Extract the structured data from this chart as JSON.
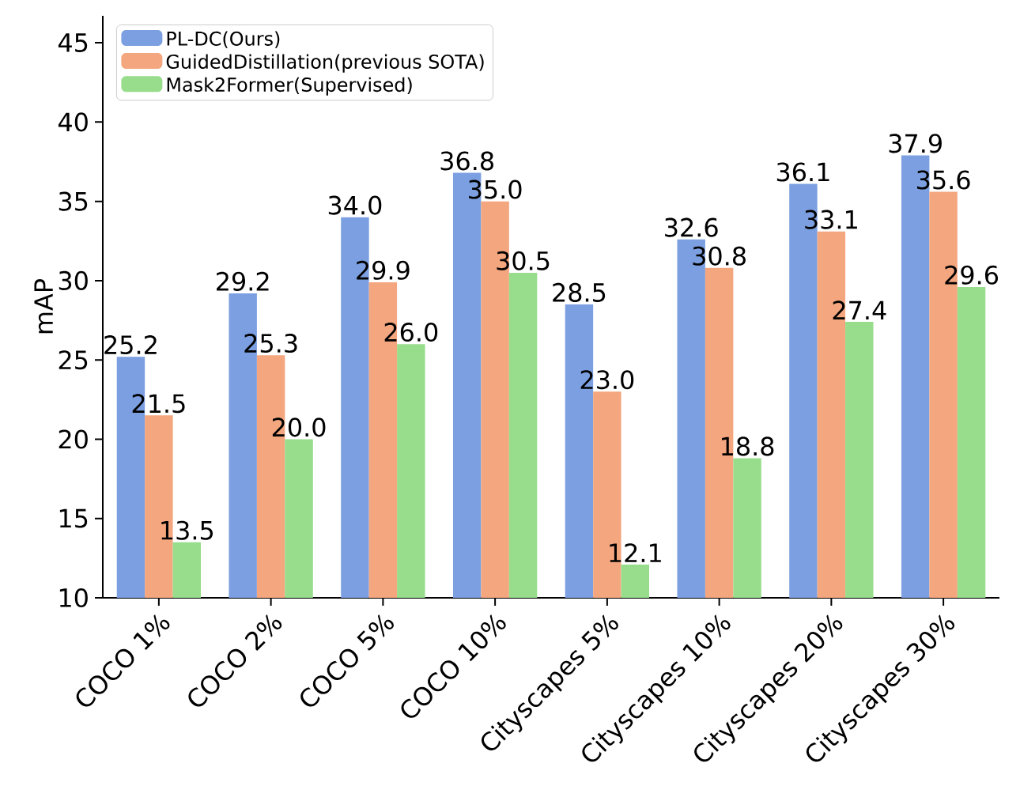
{
  "chart_data": {
    "type": "bar",
    "ylabel": "mAP",
    "categories": [
      "COCO 1%",
      "COCO 2%",
      "COCO 5%",
      "COCO 10%",
      "Cityscapes 5%",
      "Cityscapes 10%",
      "Cityscapes 20%",
      "Cityscapes 30%"
    ],
    "series": [
      {
        "name": "PL-DC(Ours)",
        "color": "#7b9fe0",
        "values": [
          25.2,
          29.2,
          34.0,
          36.8,
          28.5,
          32.6,
          36.1,
          37.9
        ],
        "value_labels": [
          "25.2",
          "29.2",
          "34.0",
          "36.8",
          "28.5",
          "32.6",
          "36.1",
          "37.9"
        ]
      },
      {
        "name": "GuidedDistillation(previous SOTA)",
        "color": "#f4a67f",
        "values": [
          21.5,
          25.3,
          29.9,
          35.0,
          23.0,
          30.8,
          33.1,
          35.6
        ],
        "value_labels": [
          "21.5",
          "25.3",
          "29.9",
          "35.0",
          "23.0",
          "30.8",
          "33.1",
          "35.6"
        ]
      },
      {
        "name": "Mask2Former(Supervised)",
        "color": "#97dd8c",
        "values": [
          13.5,
          20.0,
          26.0,
          30.5,
          12.1,
          18.8,
          27.4,
          29.6
        ],
        "value_labels": [
          "13.5",
          "20.0",
          "26.0",
          "30.5",
          "12.1",
          "18.8",
          "27.4",
          "29.6"
        ]
      }
    ],
    "ylim": [
      10,
      46.7
    ],
    "yticks": [
      10,
      15,
      20,
      25,
      30,
      35,
      40,
      45
    ],
    "legend": "top left",
    "grid": false
  }
}
